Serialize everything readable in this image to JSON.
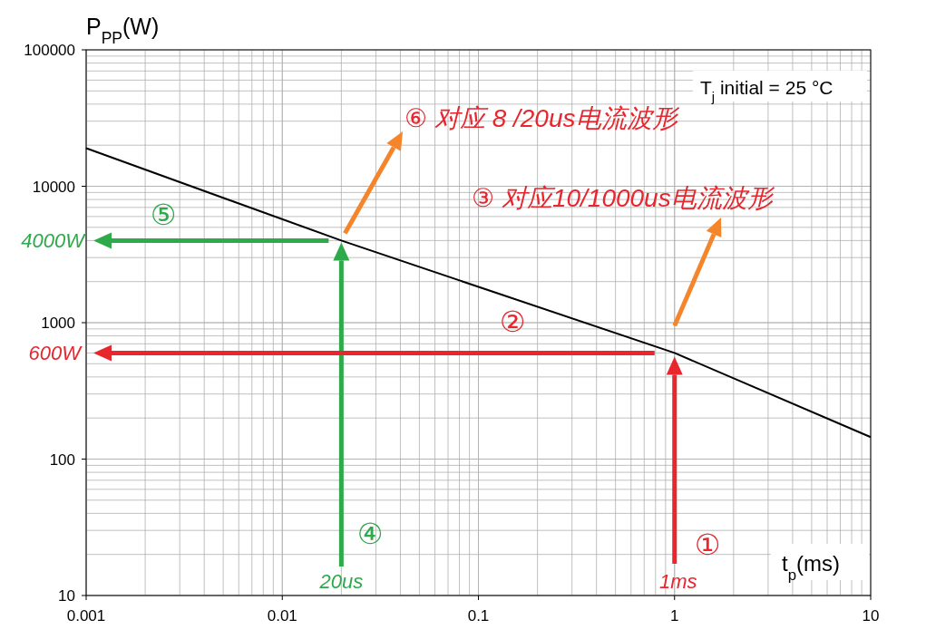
{
  "chart_data": {
    "type": "line",
    "ylabel": "P$_{PP}$(W)",
    "xlabel": "t$_{p}$(ms)",
    "log": "xy",
    "grid": true,
    "line_style": "solid",
    "xlim": [
      0.001,
      10
    ],
    "xticks": [
      0.001,
      0.01,
      0.1,
      1,
      10
    ],
    "ylim": [
      10,
      100000
    ],
    "yticks": [
      10,
      100,
      1000,
      10000,
      100000
    ],
    "series": [
      {
        "color": "#000000",
        "x": [
          0.001,
          0.02,
          1,
          10
        ],
        "values": [
          19000,
          4000,
          600,
          145
        ]
      }
    ],
    "annotations": [
      "T$_{j}$ initial = 25 °C",
      "⑥ 对应 8 /20us电流波形",
      "③ 对应10/1000us电流波形",
      "4000W",
      "⑤",
      "20us",
      "④",
      "600W",
      "②",
      "1ms",
      "①"
    ]
  }
}
